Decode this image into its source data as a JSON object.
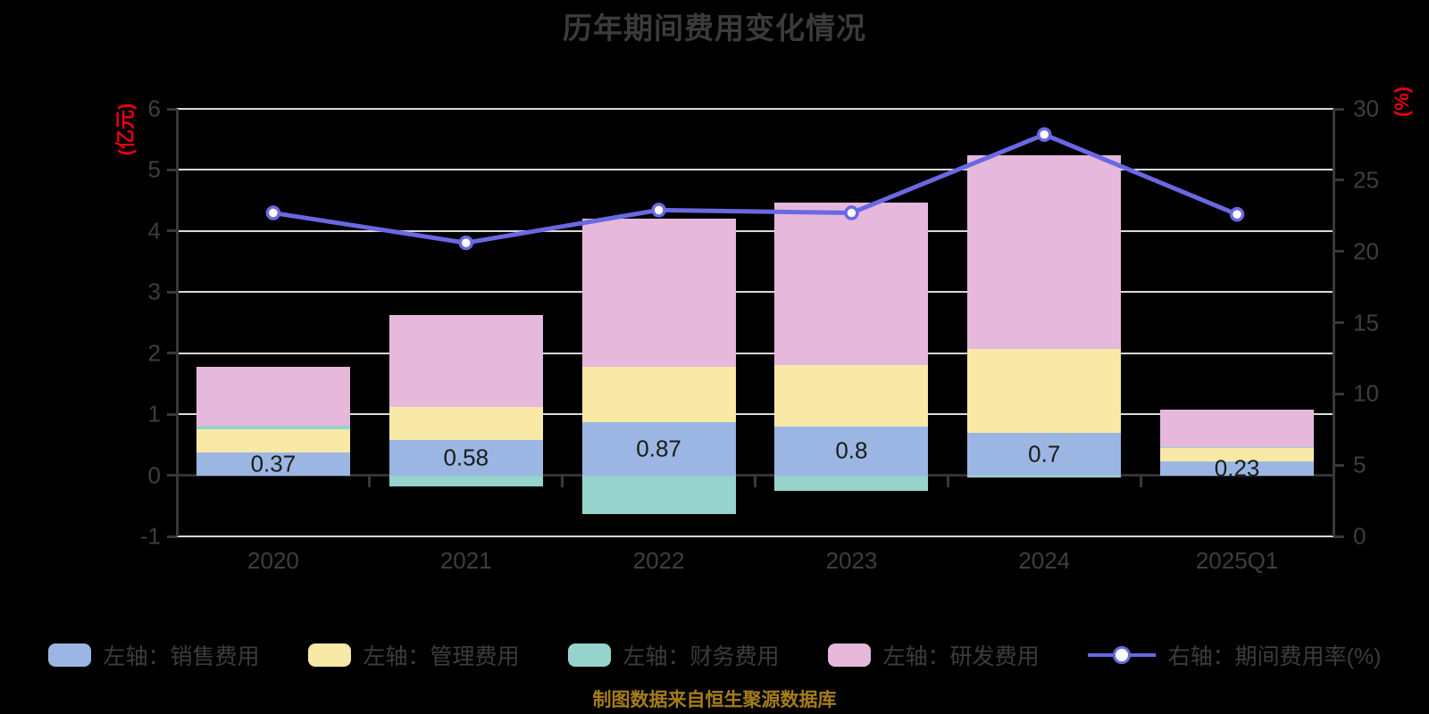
{
  "title": "历年期间费用变化情况",
  "footer": "制图数据来自恒生聚源数据库",
  "left_axis": {
    "unit": "(亿元)",
    "min": -1,
    "max": 6,
    "ticks": [
      6,
      5,
      4,
      3,
      2,
      1,
      0,
      -1
    ]
  },
  "right_axis": {
    "unit": "(%)",
    "min": 0,
    "max": 30,
    "ticks": [
      30,
      25,
      20,
      15,
      10,
      5,
      0
    ]
  },
  "colors": {
    "background": "#000000",
    "title_text": "#3b3b3b",
    "axis_line": "#383838",
    "gridline": "#d9d9d9",
    "tick_text": "#3e3e3e",
    "bar_label_text": "#1b1b1b",
    "unit_text": "#e60012",
    "footer_text": "#a77c1c",
    "sales_bar": "#9bb6e2",
    "admin_bar": "#f8e9a6",
    "finance_bar": "#96d3cd",
    "rd_bar": "#e6b8dc",
    "rate_line": "#6a68e2",
    "marker_fill": "#ffffff"
  },
  "chart_data": {
    "type": "bar",
    "subtype": "stacked-bars-with-right-axis-line",
    "categories": [
      "2020",
      "2021",
      "2022",
      "2023",
      "2024",
      "2025Q1"
    ],
    "series": [
      {
        "name": "左轴：销售费用",
        "type": "bar",
        "stack": true,
        "axis": "left",
        "color": "#9bb6e2",
        "values": [
          0.37,
          0.58,
          0.87,
          0.8,
          0.7,
          0.23
        ],
        "data_labels": [
          "0.37",
          "0.58",
          "0.87",
          "0.8",
          "0.7",
          "0.23"
        ]
      },
      {
        "name": "左轴：管理费用",
        "type": "bar",
        "stack": true,
        "axis": "left",
        "color": "#f8e9a6",
        "values": [
          0.39,
          0.54,
          0.91,
          1.0,
          1.37,
          0.21
        ]
      },
      {
        "name": "左轴：财务费用",
        "type": "bar",
        "stack": true,
        "axis": "left",
        "color": "#96d3cd",
        "values": [
          0.05,
          -0.18,
          -0.63,
          -0.25,
          -0.03,
          0.02
        ]
      },
      {
        "name": "左轴：研发费用",
        "type": "bar",
        "stack": true,
        "axis": "left",
        "color": "#e6b8dc",
        "values": [
          0.97,
          1.5,
          2.42,
          2.67,
          3.17,
          0.62
        ]
      },
      {
        "name": "右轴：期间费用率(%)",
        "type": "line",
        "axis": "right",
        "color": "#6a68e2",
        "marker": "circle",
        "values": [
          22.7,
          20.6,
          22.9,
          22.7,
          28.2,
          22.6
        ]
      }
    ],
    "title": "历年期间费用变化情况",
    "xlabel": "",
    "ylabel_left": "(亿元)",
    "ylabel_right": "(%)",
    "ylim_left": [
      -1,
      6
    ],
    "ylim_right": [
      0,
      30
    ],
    "grid": true,
    "legend_position": "bottom"
  }
}
